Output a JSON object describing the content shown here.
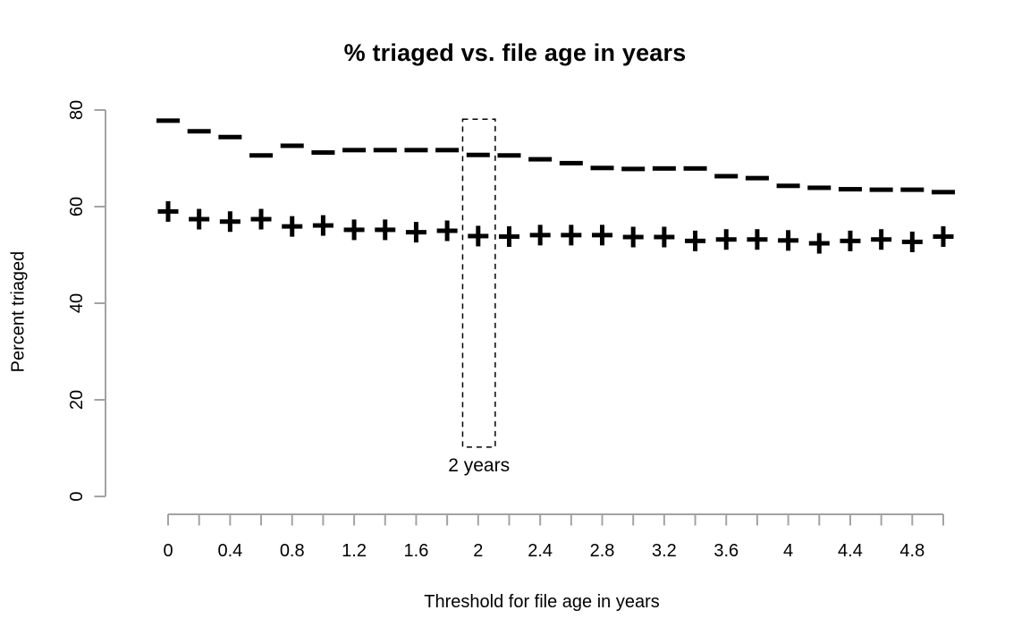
{
  "chart_data": {
    "type": "scatter",
    "title": "% triaged vs. file age in years",
    "xlabel": "Threshold for file age in years",
    "ylabel": "Percent triaged",
    "x": [
      0,
      0.2,
      0.4,
      0.6,
      0.8,
      1.0,
      1.2,
      1.4,
      1.6,
      1.8,
      2.0,
      2.2,
      2.4,
      2.6,
      2.8,
      3.0,
      3.2,
      3.4,
      3.6,
      3.8,
      4.0,
      4.2,
      4.4,
      4.6,
      4.8,
      5.0
    ],
    "series": [
      {
        "name": "dash",
        "marker": "dash",
        "values": [
          77.8,
          75.6,
          74.4,
          70.6,
          72.6,
          71.2,
          71.7,
          71.7,
          71.7,
          71.7,
          70.7,
          70.6,
          69.8,
          69.0,
          68.0,
          67.8,
          67.9,
          67.9,
          66.3,
          65.9,
          64.3,
          63.9,
          63.6,
          63.5,
          63.5,
          63.0
        ]
      },
      {
        "name": "plus",
        "marker": "plus",
        "values": [
          59.0,
          57.4,
          56.9,
          57.4,
          55.9,
          56.1,
          55.2,
          55.2,
          54.7,
          55.0,
          53.9,
          53.8,
          54.1,
          54.1,
          54.1,
          53.7,
          53.7,
          52.9,
          53.2,
          53.2,
          53.0,
          52.4,
          52.9,
          53.2,
          52.7,
          53.8
        ]
      }
    ],
    "x_axis": {
      "range": [
        0,
        5
      ],
      "minor_tick_step": 0.2,
      "tick_labels": [
        {
          "v": 0,
          "t": "0"
        },
        {
          "v": 0.4,
          "t": "0.4"
        },
        {
          "v": 0.8,
          "t": "0.8"
        },
        {
          "v": 1.2,
          "t": "1.2"
        },
        {
          "v": 1.6,
          "t": "1.6"
        },
        {
          "v": 2,
          "t": "2"
        },
        {
          "v": 2.4,
          "t": "2.4"
        },
        {
          "v": 2.8,
          "t": "2.8"
        },
        {
          "v": 3.2,
          "t": "3.2"
        },
        {
          "v": 3.6,
          "t": "3.6"
        },
        {
          "v": 4,
          "t": "4"
        },
        {
          "v": 4.4,
          "t": "4.4"
        },
        {
          "v": 4.8,
          "t": "4.8"
        }
      ]
    },
    "y_axis": {
      "range": [
        0,
        80
      ],
      "ticks": [
        {
          "v": 0,
          "t": "0"
        },
        {
          "v": 20,
          "t": "20"
        },
        {
          "v": 40,
          "t": "40"
        },
        {
          "v": 60,
          "t": "60"
        },
        {
          "v": 80,
          "t": "80"
        }
      ]
    },
    "annotation": {
      "label": "2 years",
      "rect": {
        "x0": 1.9,
        "x1": 2.11,
        "y0": 10.2,
        "y1": 78.1
      }
    },
    "grid": false,
    "legend": null,
    "colors": {
      "marker": "#000000",
      "axis": "#a3a3a3",
      "text": "#000000"
    }
  }
}
